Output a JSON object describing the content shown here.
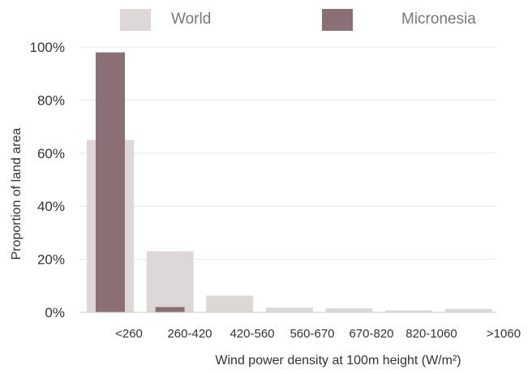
{
  "chart_data": {
    "type": "bar",
    "xlabel": "Wind power density at 100m height (W/m²)",
    "ylabel": "Proportion of land area",
    "ylim": [
      0,
      100
    ],
    "y_ticks": [
      "0%",
      "20%",
      "40%",
      "60%",
      "80%",
      "100%"
    ],
    "y_tick_values": [
      0,
      20,
      40,
      60,
      80,
      100
    ],
    "grid": true,
    "legend_position": "top",
    "categories": [
      "<260",
      "260-420",
      "420-560",
      "560-670",
      "670-820",
      "820-1060",
      ">1060"
    ],
    "series": [
      {
        "name": "World",
        "color": "#ddd7d7",
        "values": [
          65,
          23,
          6.3,
          1.8,
          1.5,
          0.7,
          1.3
        ]
      },
      {
        "name": "Micronesia",
        "color": "#8a7075",
        "values": [
          98,
          2,
          0,
          0,
          0,
          0,
          0
        ]
      }
    ]
  }
}
